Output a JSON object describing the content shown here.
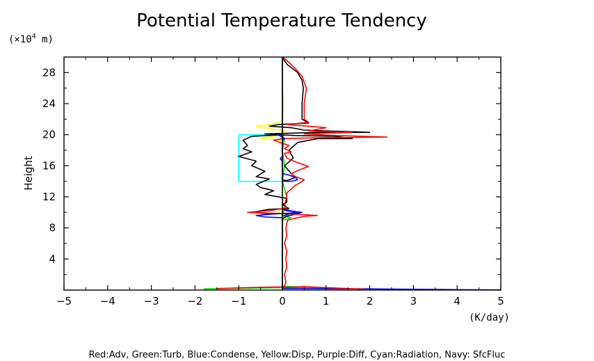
{
  "chart_data": {
    "type": "line",
    "title": "Potential Temperature Tendency",
    "ylabel": "Height",
    "yunit": "(×10",
    "yunit_exp": "4",
    "yunit_tail": " m)",
    "xunit": "(K/day)",
    "legend_text": "Red:Adv, Green:Turb, Blue:Condense, Yellow:Disp, Purple:Diff, Cyan:Radiation, Navy: SfcFluc",
    "xlim": [
      -5,
      5
    ],
    "ylim": [
      0,
      30
    ],
    "xticks": [
      -5,
      -4,
      -3,
      -2,
      -1,
      0,
      1,
      2,
      3,
      4,
      5
    ],
    "xtick_labels": [
      "−5",
      "−4",
      "−3",
      "−2",
      "−1",
      "0",
      "1",
      "2",
      "3",
      "4",
      "5"
    ],
    "yticks": [
      4,
      8,
      12,
      16,
      20,
      24,
      28
    ],
    "ytick_labels": [
      "4",
      "8",
      "12",
      "16",
      "20",
      "24",
      "28"
    ],
    "series": [
      {
        "color": "#00ffff",
        "points": [
          [
            0,
            14
          ],
          [
            -1,
            14
          ],
          [
            -1,
            20
          ],
          [
            0,
            20
          ]
        ]
      },
      {
        "color": "#ffff00",
        "points": [
          [
            0,
            19.3
          ],
          [
            -0.5,
            19.5
          ],
          [
            -0.2,
            19.8
          ],
          [
            0,
            20
          ],
          [
            0.05,
            20.5
          ],
          [
            -0.3,
            20.8
          ],
          [
            -0.6,
            21.1
          ],
          [
            -0.2,
            21.4
          ],
          [
            0,
            21.8
          ],
          [
            0.02,
            23
          ],
          [
            0.02,
            25
          ],
          [
            0,
            26
          ],
          [
            0,
            9.5
          ],
          [
            -0.1,
            10.2
          ],
          [
            0,
            10.6
          ],
          [
            0.1,
            9.6
          ],
          [
            0,
            9
          ]
        ]
      },
      {
        "color": "#00dd00",
        "points": [
          [
            -1.8,
            0.15
          ],
          [
            0,
            0.3
          ],
          [
            0.3,
            0.35
          ],
          [
            0.8,
            0.3
          ],
          [
            1.5,
            0.15
          ],
          [
            0,
            0.5
          ],
          [
            0,
            9
          ],
          [
            0.2,
            9.3
          ],
          [
            0,
            9.6
          ],
          [
            0.1,
            12
          ],
          [
            0,
            14
          ],
          [
            0.05,
            16
          ],
          [
            0,
            18
          ],
          [
            0.05,
            19.4
          ],
          [
            0,
            20
          ]
        ]
      },
      {
        "color": "#0000ff",
        "points": [
          [
            0,
            0.2
          ],
          [
            2,
            0.15
          ],
          [
            3,
            0.1
          ],
          [
            4,
            0.05
          ],
          [
            5,
            0.02
          ]
        ]
      },
      {
        "color": "#000000",
        "points": [
          [
            0,
            30
          ],
          [
            0,
            14.2
          ],
          [
            0.1,
            14.1
          ],
          [
            0.3,
            14.5
          ],
          [
            0.2,
            15
          ],
          [
            0.05,
            16
          ],
          [
            0.25,
            17
          ],
          [
            0.15,
            18
          ],
          [
            0.35,
            19
          ],
          [
            0.8,
            19.5
          ],
          [
            1.6,
            19.5
          ],
          [
            1.2,
            19.8
          ],
          [
            0.3,
            19.9
          ],
          [
            -0.1,
            20
          ],
          [
            -0.4,
            20.1
          ],
          [
            0.2,
            20.2
          ],
          [
            0.8,
            20.3
          ],
          [
            2,
            20.3
          ],
          [
            0.5,
            20.6
          ],
          [
            0.2,
            20.9
          ],
          [
            -0.3,
            21.1
          ],
          [
            -0.1,
            21.3
          ],
          [
            0.6,
            21.5
          ],
          [
            0.45,
            22
          ],
          [
            0.45,
            24
          ],
          [
            0.48,
            26
          ],
          [
            0.45,
            27
          ],
          [
            0.35,
            28
          ],
          [
            0.12,
            29
          ],
          [
            0.05,
            29.5
          ],
          [
            0,
            30
          ]
        ]
      },
      {
        "color": "#000000",
        "points": [
          [
            0,
            20
          ],
          [
            -0.7,
            19.8
          ],
          [
            -0.9,
            19.3
          ],
          [
            -0.8,
            18.6
          ],
          [
            -0.9,
            18.2
          ],
          [
            -0.7,
            17.8
          ],
          [
            -1.0,
            17.2
          ],
          [
            -0.6,
            16.6
          ],
          [
            -0.7,
            16.0
          ],
          [
            -0.4,
            15.3
          ],
          [
            -0.6,
            14.6
          ],
          [
            -0.3,
            14.3
          ],
          [
            -0.6,
            13.6
          ],
          [
            -0.5,
            13.2
          ],
          [
            -0.2,
            12.8
          ],
          [
            -0.4,
            12.3
          ],
          [
            0.1,
            11.8
          ],
          [
            0.1,
            11.3
          ],
          [
            0,
            11
          ],
          [
            0.15,
            10.5
          ],
          [
            -0.3,
            10.4
          ],
          [
            -0.7,
            10.0
          ],
          [
            -0.3,
            9.8
          ],
          [
            0.4,
            9.9
          ],
          [
            0.1,
            9.5
          ],
          [
            0,
            9.2
          ],
          [
            0,
            0
          ]
        ]
      },
      {
        "color": "#ff0000",
        "points": [
          [
            0,
            0.3
          ],
          [
            0.5,
            0.45
          ],
          [
            0.8,
            0.35
          ],
          [
            1.5,
            0.2
          ],
          [
            1.9,
            0.1
          ]
        ]
      },
      {
        "color": "#ff0000",
        "points": [
          [
            -1.5,
            0.2
          ],
          [
            -0.5,
            0.35
          ],
          [
            0,
            0.4
          ],
          [
            0.05,
            0.5
          ],
          [
            0.08,
            1
          ],
          [
            0.05,
            2
          ],
          [
            0.1,
            3
          ],
          [
            0.08,
            4
          ],
          [
            0.1,
            5
          ],
          [
            0.05,
            6
          ],
          [
            0.1,
            7
          ],
          [
            0.08,
            8
          ],
          [
            0.12,
            9
          ],
          [
            0.5,
            9.5
          ],
          [
            0.8,
            9.6
          ],
          [
            0.2,
            9.8
          ],
          [
            -0.3,
            9.9
          ],
          [
            -0.8,
            10.0
          ],
          [
            -0.3,
            10.2
          ],
          [
            0.1,
            10.6
          ],
          [
            0.05,
            11
          ],
          [
            0.1,
            12
          ],
          [
            0.1,
            12.5
          ],
          [
            0.2,
            13
          ],
          [
            0.3,
            13.5
          ],
          [
            0.4,
            13.8
          ],
          [
            0.5,
            14.2
          ],
          [
            0.3,
            14.6
          ],
          [
            0.2,
            15
          ],
          [
            0.4,
            15.5
          ],
          [
            0.6,
            15.9
          ],
          [
            0.3,
            16.5
          ],
          [
            0.1,
            17
          ],
          [
            0.05,
            17.6
          ],
          [
            0.2,
            17.8
          ],
          [
            0.05,
            18.2
          ],
          [
            0.15,
            18.6
          ],
          [
            -0.2,
            19.3
          ],
          [
            0,
            19.5
          ],
          [
            0.8,
            19.6
          ],
          [
            2.4,
            19.7
          ],
          [
            1.2,
            19.9
          ],
          [
            0.5,
            20.1
          ],
          [
            1.0,
            20.2
          ],
          [
            1.6,
            20.3
          ],
          [
            0.6,
            20.5
          ],
          [
            1.0,
            20.9
          ],
          [
            0.6,
            21.1
          ],
          [
            0.1,
            21.3
          ],
          [
            0.6,
            21.6
          ],
          [
            0.5,
            22
          ],
          [
            0.5,
            24
          ],
          [
            0.55,
            26
          ],
          [
            0.45,
            27.5
          ],
          [
            0.3,
            28.5
          ],
          [
            0.15,
            29.3
          ],
          [
            0,
            30
          ]
        ]
      },
      {
        "color": "#0000ff",
        "points": [
          [
            0,
            14
          ],
          [
            0.2,
            14.0
          ],
          [
            0.35,
            14.2
          ],
          [
            0.3,
            14.5
          ],
          [
            0.15,
            14.8
          ],
          [
            0,
            15
          ],
          [
            0,
            16.6
          ],
          [
            -0.05,
            16.9
          ],
          [
            0,
            17.2
          ],
          [
            0,
            19.2
          ],
          [
            0.05,
            19.5
          ],
          [
            -0.1,
            20
          ],
          [
            0,
            20.2
          ]
        ]
      },
      {
        "color": "#0000ff",
        "points": [
          [
            0,
            9.3
          ],
          [
            -0.4,
            9.4
          ],
          [
            -0.6,
            9.6
          ],
          [
            -0.2,
            9.8
          ],
          [
            0.2,
            9.9
          ],
          [
            0.45,
            10.0
          ],
          [
            0.1,
            10.2
          ],
          [
            0,
            10.4
          ],
          [
            0.3,
            10.1
          ],
          [
            0.1,
            9.7
          ],
          [
            0,
            9.5
          ]
        ]
      },
      {
        "color": "#000000",
        "points": [
          [
            0,
            0
          ],
          [
            0,
            30
          ]
        ]
      }
    ]
  }
}
